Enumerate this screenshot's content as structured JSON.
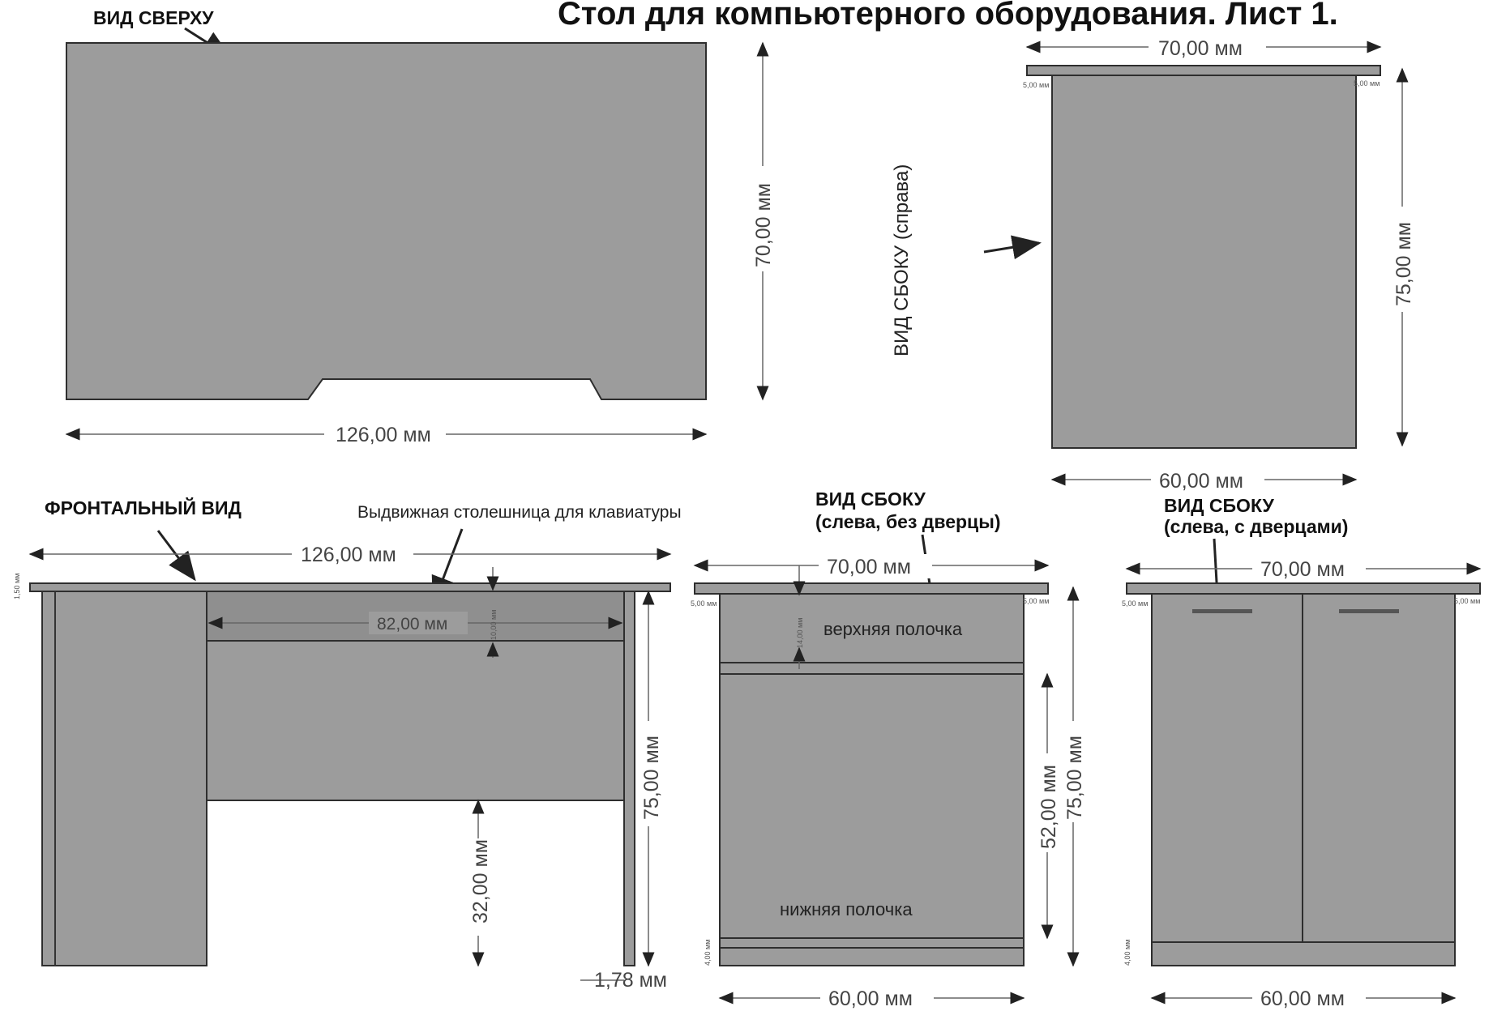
{
  "title": "Стол для компьютерного оборудования. Лист 1.",
  "views": {
    "top": {
      "label": "ВИД СВЕРХУ",
      "width_dim": "126,00 мм",
      "depth_dim": "70,00 мм"
    },
    "side_right": {
      "label": "ВИД СБОКУ (справа)",
      "top_dim": "70,00 мм",
      "height_dim": "75,00 мм",
      "bottom_dim": "60,00 мм",
      "offset_left": "5,00 мм",
      "offset_right": "5,00 мм"
    },
    "front": {
      "label": "ФРОНТАЛЬНЫЙ ВИД",
      "keyboard_note": "Выдвижная столешница для клавиатуры",
      "width_dim": "126,00 мм",
      "tray_dim": "82,00 мм",
      "tray_height_dim": "10,00 мм",
      "top_thickness_dim": "1,50 мм",
      "height_dim": "75,00 мм",
      "clearance_dim": "32,00 мм",
      "leg_dim": "1,78 мм"
    },
    "side_left_open": {
      "label_line1": "ВИД СБОКУ",
      "label_line2": "(слева, без дверцы)",
      "top_dim": "70,00 мм",
      "upper_shelf": "верхняя полочка",
      "lower_shelf": "нижняя полочка",
      "upper_dim": "14,00 мм",
      "inner_dim": "52,00 мм",
      "height_dim": "75,00 мм",
      "bottom_dim": "60,00 мм",
      "plinth_dim": "4,00 мм",
      "offset_left": "5,00 мм",
      "offset_right": "5,00 мм"
    },
    "side_left_doors": {
      "label_line1": "ВИД СБОКУ",
      "label_line2": "(слева, с дверцами)",
      "top_dim": "70,00 мм",
      "bottom_dim": "60,00 мм",
      "plinth_dim": "4,00 мм",
      "offset_left": "5,00 мм",
      "offset_right": "5,00 мм"
    }
  }
}
